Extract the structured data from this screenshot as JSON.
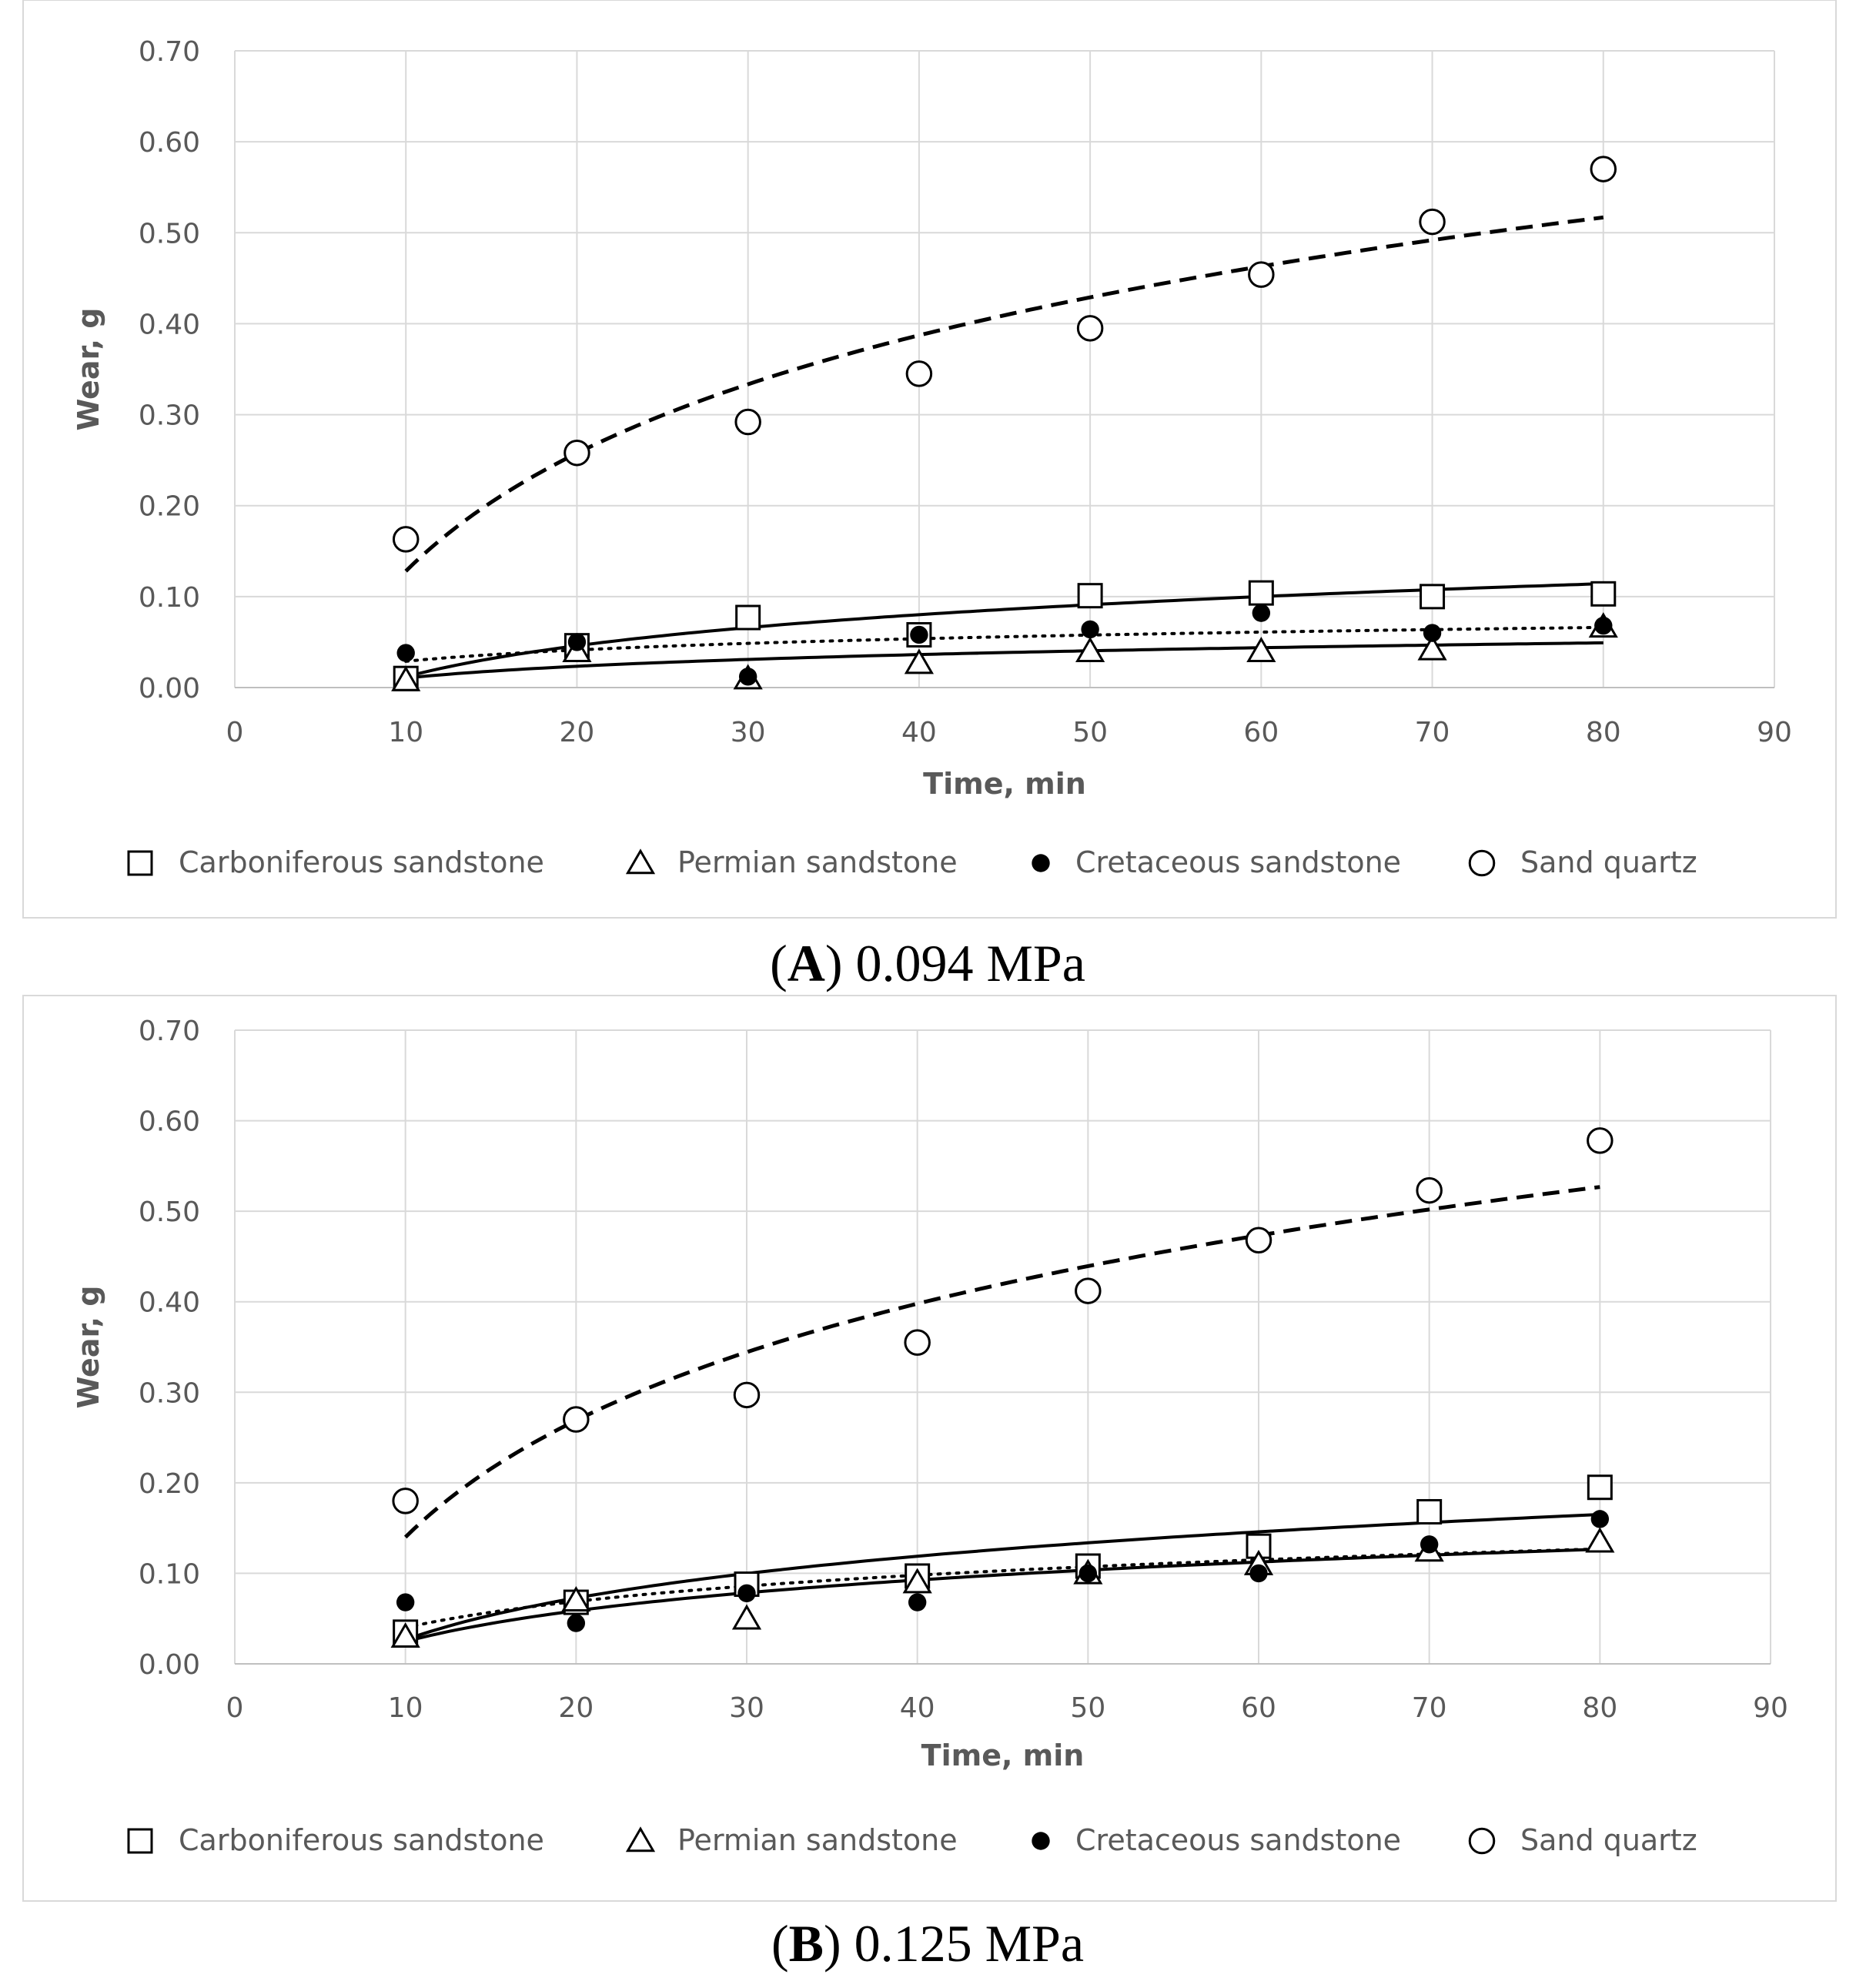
{
  "colors": {
    "grid": "#d9d9d9",
    "axis_text": "#595959",
    "marker": "#000000",
    "frame": "#d9d9d9"
  },
  "legend_icons": [
    "open-square",
    "open-triangle",
    "filled-circle",
    "open-circle"
  ],
  "chart_data": [
    {
      "panel": "A",
      "type": "scatter",
      "caption_letter": "A",
      "caption_rest": ") 0.094 MPa",
      "caption_open": "(",
      "xlabel": "Time, min",
      "ylabel": "Wear, g",
      "xlim": [
        0,
        90
      ],
      "ylim": [
        0,
        0.7
      ],
      "xticks": [
        0,
        10,
        20,
        30,
        40,
        50,
        60,
        70,
        80,
        90
      ],
      "xtick_labels": [
        "0",
        "10",
        "20",
        "30",
        "40",
        "50",
        "60",
        "70",
        "80",
        "90"
      ],
      "yticks": [
        0,
        0.1,
        0.2,
        0.3,
        0.4,
        0.5,
        0.6,
        0.7
      ],
      "ytick_labels": [
        "0.00",
        "0.10",
        "0.20",
        "0.30",
        "0.40",
        "0.50",
        "0.60",
        "0.70"
      ],
      "grid": true,
      "legend_position": "bottom",
      "x": [
        10,
        20,
        30,
        40,
        50,
        60,
        70,
        80
      ],
      "series": [
        {
          "name": "Carboniferous sandstone",
          "marker": "open-square",
          "values": [
            0.01,
            0.046,
            0.077,
            0.058,
            0.101,
            0.104,
            0.1,
            0.103
          ],
          "trend": {
            "style": "solid",
            "a": 0.0119,
            "b": 0.0492
          }
        },
        {
          "name": "Permian sandstone",
          "marker": "open-triangle",
          "values": [
            0.008,
            0.04,
            0.01,
            0.027,
            0.04,
            0.04,
            0.042,
            0.067
          ],
          "trend": {
            "style": "solid",
            "a": 0.0105,
            "b": 0.0186
          }
        },
        {
          "name": "Cretaceous sandstone",
          "marker": "filled-circle",
          "values": [
            0.038,
            0.05,
            0.012,
            0.058,
            0.064,
            0.082,
            0.06,
            0.068
          ],
          "trend": {
            "style": "dotted",
            "a": 0.0289,
            "b": 0.0179
          }
        },
        {
          "name": "Sand quartz",
          "marker": "open-circle",
          "values": [
            0.163,
            0.258,
            0.292,
            0.345,
            0.395,
            0.454,
            0.512,
            0.57
          ],
          "trend": {
            "style": "dashed",
            "a": 0.128,
            "b": 0.187
          }
        }
      ]
    },
    {
      "panel": "B",
      "type": "scatter",
      "caption_letter": "B",
      "caption_rest": ") 0.125 MPa",
      "caption_open": "(",
      "xlabel": "Time, min",
      "ylabel": "Wear, g",
      "xlim": [
        0,
        90
      ],
      "ylim": [
        0,
        0.7
      ],
      "xticks": [
        0,
        10,
        20,
        30,
        40,
        50,
        60,
        70,
        80,
        90
      ],
      "xtick_labels": [
        "0",
        "10",
        "20",
        "30",
        "40",
        "50",
        "60",
        "70",
        "80",
        "90"
      ],
      "yticks": [
        0,
        0.1,
        0.2,
        0.3,
        0.4,
        0.5,
        0.6,
        0.7
      ],
      "ytick_labels": [
        "0.00",
        "0.10",
        "0.20",
        "0.30",
        "0.40",
        "0.50",
        "0.60",
        "0.70"
      ],
      "grid": true,
      "legend_position": "bottom",
      "x": [
        10,
        20,
        30,
        40,
        50,
        60,
        70,
        80
      ],
      "series": [
        {
          "name": "Carboniferous sandstone",
          "marker": "open-square",
          "values": [
            0.035,
            0.068,
            0.088,
            0.097,
            0.108,
            0.13,
            0.168,
            0.195
          ],
          "trend": {
            "style": "solid",
            "a": 0.0267,
            "b": 0.0665
          }
        },
        {
          "name": "Permian sandstone",
          "marker": "open-triangle",
          "values": [
            0.03,
            0.07,
            0.05,
            0.09,
            0.1,
            0.11,
            0.125,
            0.135
          ],
          "trend": {
            "style": "solid",
            "a": 0.0247,
            "b": 0.049
          }
        },
        {
          "name": "Cretaceous sandstone",
          "marker": "filled-circle",
          "values": [
            0.068,
            0.045,
            0.078,
            0.068,
            0.1,
            0.1,
            0.132,
            0.16
          ],
          "trend": {
            "style": "dotted",
            "a": 0.04,
            "b": 0.0418
          }
        },
        {
          "name": "Sand quartz",
          "marker": "open-circle",
          "values": [
            0.18,
            0.27,
            0.297,
            0.355,
            0.412,
            0.468,
            0.523,
            0.578
          ],
          "trend": {
            "style": "dashed",
            "a": 0.14,
            "b": 0.186
          }
        }
      ]
    }
  ]
}
